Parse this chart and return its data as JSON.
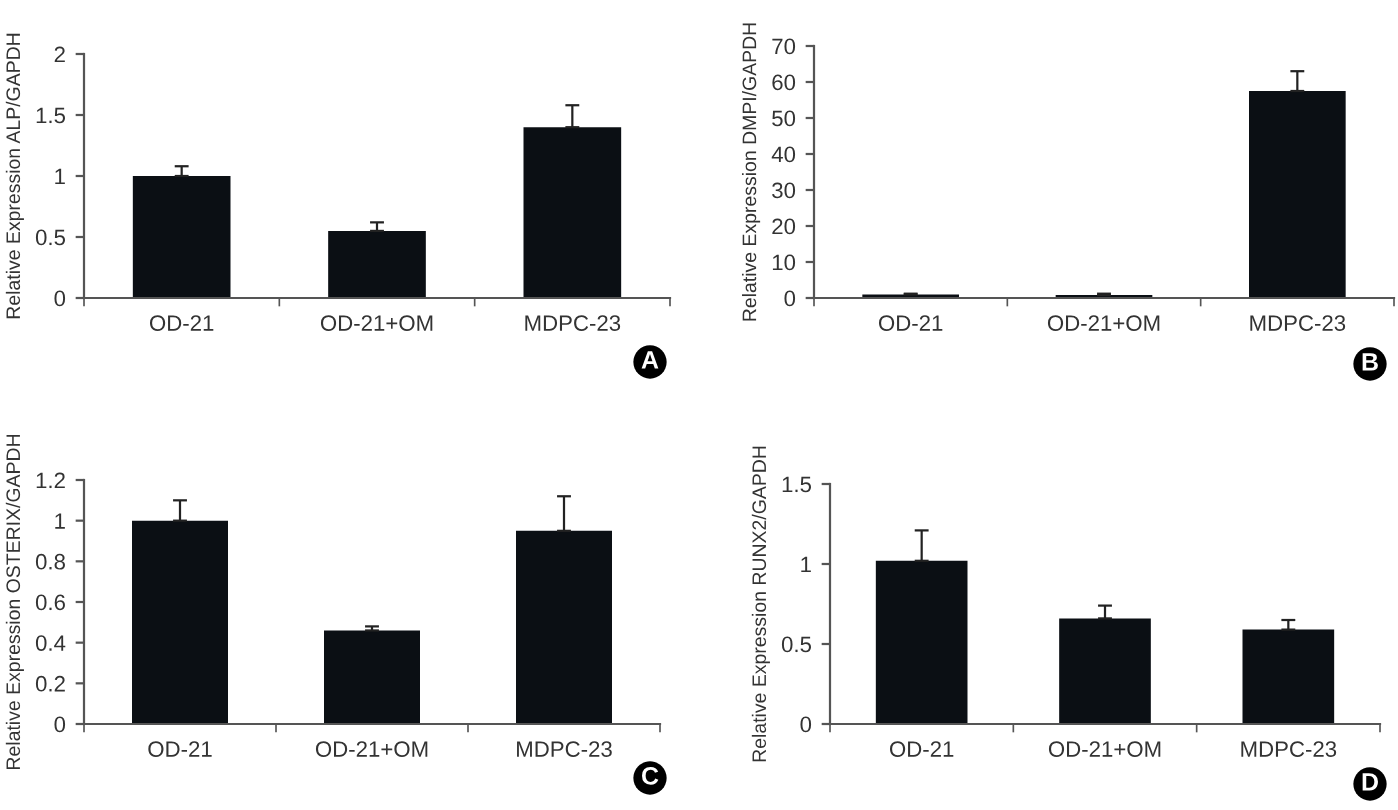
{
  "chart_data": [
    {
      "type": "bar",
      "ylabel": "Relative Expression ALP/GAPDH",
      "categories": [
        "OD-21",
        "OD-21+OM",
        "MDPC-23"
      ],
      "values": [
        1.0,
        0.55,
        1.4
      ],
      "errors": [
        [
          1.0,
          1.08
        ],
        [
          0.55,
          0.62
        ],
        [
          1.4,
          1.58
        ]
      ],
      "color": "#0b0f14",
      "ylim": [
        0,
        2
      ],
      "yticks": [
        0,
        0.5,
        1,
        1.5,
        2
      ],
      "annotations": [
        "A"
      ]
    },
    {
      "type": "bar",
      "ylabel": "Relative Expression DMPI/GAPDH",
      "categories": [
        "OD-21",
        "OD-21+OM",
        "MDPC-23"
      ],
      "values": [
        1.0,
        0.8,
        57.5
      ],
      "errors": [
        [
          1.0,
          1.2
        ],
        [
          0.8,
          1.2
        ],
        [
          57.5,
          63
        ]
      ],
      "color": "#0b0f14",
      "ylim": [
        0,
        70
      ],
      "yticks": [
        0,
        10,
        20,
        30,
        40,
        50,
        60,
        70
      ],
      "annotations": [
        "B"
      ]
    },
    {
      "type": "bar",
      "ylabel": "Relative Expression OSTERIX/GAPDH",
      "categories": [
        "OD-21",
        "OD-21+OM",
        "MDPC-23"
      ],
      "values": [
        1.0,
        0.46,
        0.95
      ],
      "errors": [
        [
          1.0,
          1.1
        ],
        [
          0.46,
          0.48
        ],
        [
          0.95,
          1.12
        ]
      ],
      "color": "#0b0f14",
      "ylim": [
        0,
        1.2
      ],
      "yticks": [
        0,
        {
          "value": 0.2,
          "label": "0.2"
        },
        {
          "value": 0.4,
          "label": "0.4"
        },
        {
          "value": 0.6,
          "label": "0.6"
        },
        {
          "value": 0.8,
          "label": "0.8"
        },
        1,
        {
          "value": 1.2,
          "label": "1.2"
        }
      ],
      "annotations": [
        "C"
      ]
    },
    {
      "type": "bar",
      "ylabel": "Relative Expression RUNX2/GAPDH",
      "categories": [
        "OD-21",
        "OD-21+OM",
        "MDPC-23"
      ],
      "values": [
        1.02,
        0.66,
        0.59
      ],
      "errors": [
        [
          1.02,
          1.21
        ],
        [
          0.66,
          0.74
        ],
        [
          0.59,
          0.65
        ]
      ],
      "color": "#0b0f14",
      "ylim": [
        0,
        1.5
      ],
      "yticks": [
        0,
        0.5,
        1,
        1.5
      ],
      "annotations": [
        "D"
      ]
    }
  ]
}
